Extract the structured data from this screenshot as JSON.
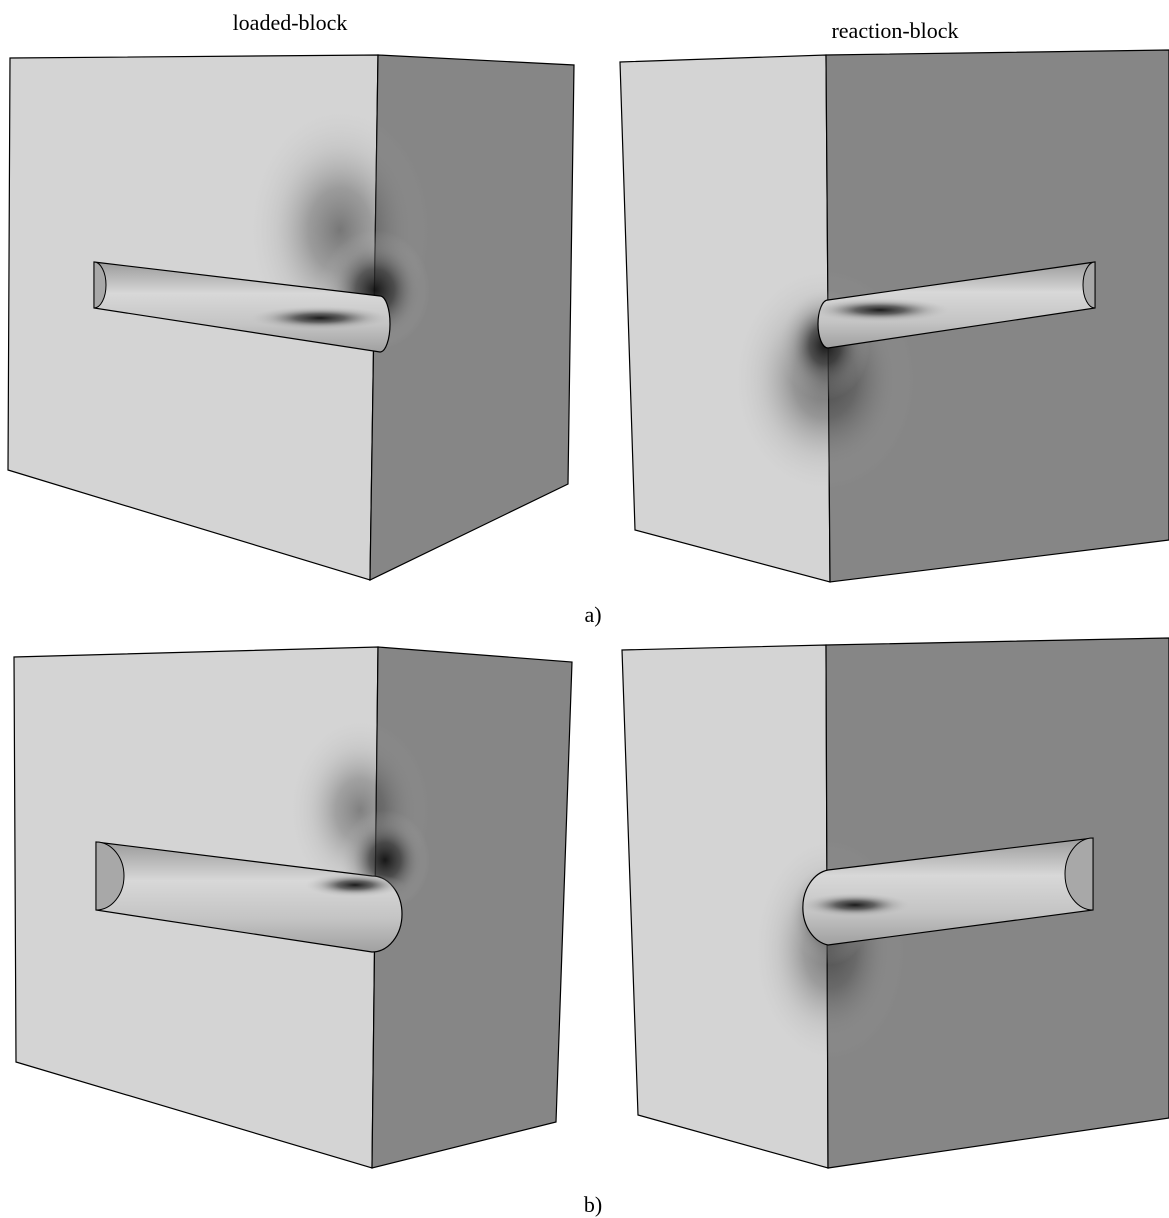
{
  "labels": {
    "left": "loaded-block",
    "right": "reaction-block"
  },
  "panels": [
    "a)",
    "b)"
  ]
}
